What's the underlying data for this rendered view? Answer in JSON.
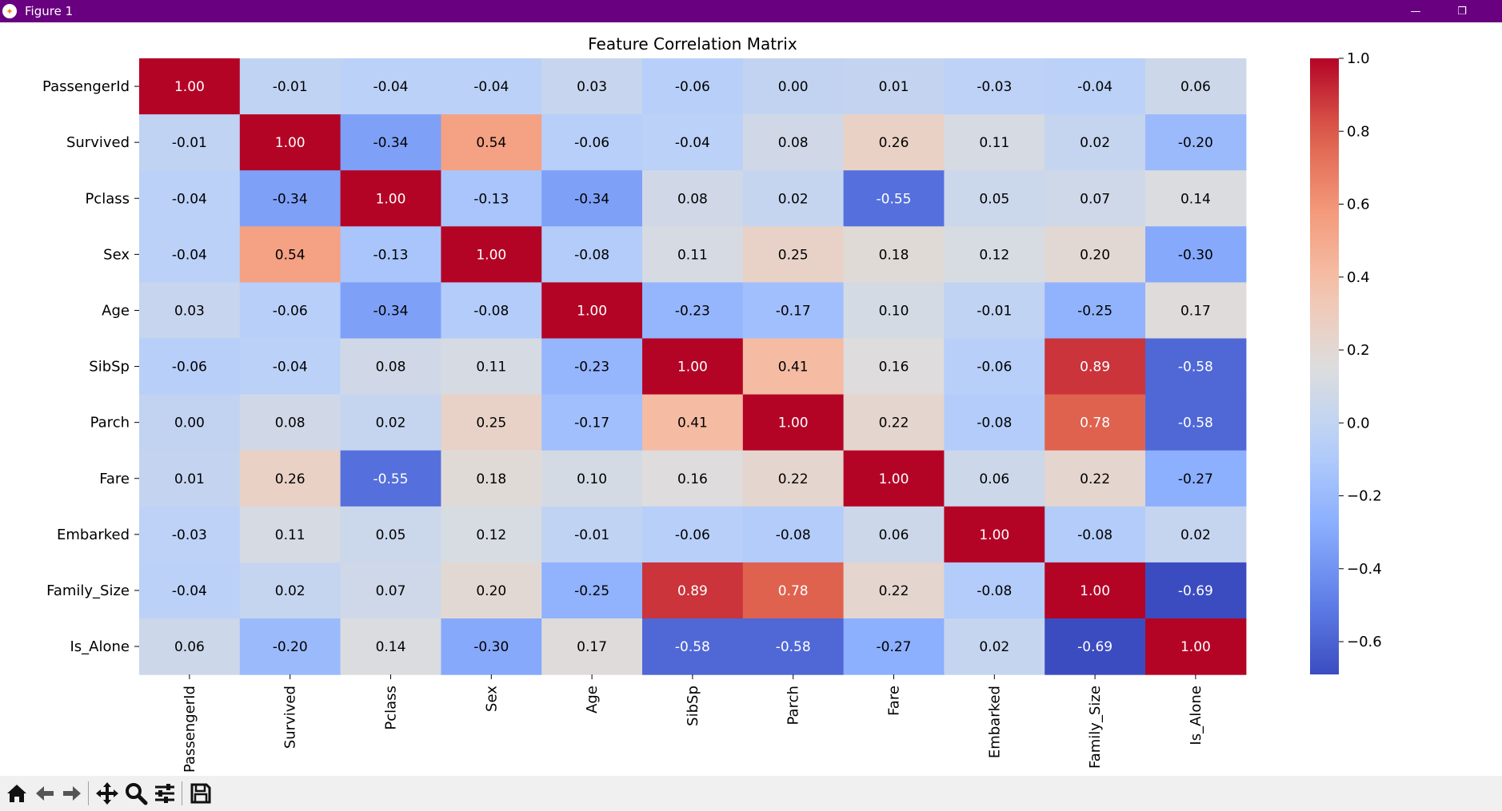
{
  "window": {
    "title": "Figure 1",
    "minimize_glyph": "—",
    "restore_glyph": "❐"
  },
  "toolbar": {
    "tools": [
      {
        "name": "home-icon",
        "glyph": "⌂"
      },
      {
        "name": "back-icon",
        "glyph": "←"
      },
      {
        "name": "forward-icon",
        "glyph": "→"
      },
      {
        "name": "pan-icon",
        "glyph": "✥"
      },
      {
        "name": "zoom-icon",
        "glyph": "🔍"
      },
      {
        "name": "configure-subplots-icon",
        "glyph": "☰"
      },
      {
        "name": "save-icon",
        "glyph": "💾"
      }
    ]
  },
  "chart_data": {
    "type": "heatmap",
    "title": "Feature Correlation Matrix",
    "colormap": "coolwarm",
    "vmin": -0.69,
    "vmax": 1.0,
    "labels": [
      "PassengerId",
      "Survived",
      "Pclass",
      "Sex",
      "Age",
      "SibSp",
      "Parch",
      "Fare",
      "Embarked",
      "Family_Size",
      "Is_Alone"
    ],
    "values": [
      [
        1.0,
        -0.01,
        -0.04,
        -0.04,
        0.03,
        -0.06,
        -0.0,
        0.01,
        -0.03,
        -0.04,
        0.06
      ],
      [
        -0.01,
        1.0,
        -0.34,
        0.54,
        -0.06,
        -0.04,
        0.08,
        0.26,
        0.11,
        0.02,
        -0.2
      ],
      [
        -0.04,
        -0.34,
        1.0,
        -0.13,
        -0.34,
        0.08,
        0.02,
        -0.55,
        0.05,
        0.07,
        0.14
      ],
      [
        -0.04,
        0.54,
        -0.13,
        1.0,
        -0.08,
        0.11,
        0.25,
        0.18,
        0.12,
        0.2,
        -0.3
      ],
      [
        0.03,
        -0.06,
        -0.34,
        -0.08,
        1.0,
        -0.23,
        -0.17,
        0.1,
        -0.01,
        -0.25,
        0.17
      ],
      [
        -0.06,
        -0.04,
        0.08,
        0.11,
        -0.23,
        1.0,
        0.41,
        0.16,
        -0.06,
        0.89,
        -0.58
      ],
      [
        -0.0,
        0.08,
        0.02,
        0.25,
        -0.17,
        0.41,
        1.0,
        0.22,
        -0.08,
        0.78,
        -0.58
      ],
      [
        0.01,
        0.26,
        -0.55,
        0.18,
        0.1,
        0.16,
        0.22,
        1.0,
        0.06,
        0.22,
        -0.27
      ],
      [
        -0.03,
        0.11,
        0.05,
        0.12,
        -0.01,
        -0.06,
        -0.08,
        0.06,
        1.0,
        -0.08,
        0.02
      ],
      [
        -0.04,
        0.02,
        0.07,
        0.2,
        -0.25,
        0.89,
        0.78,
        0.22,
        -0.08,
        1.0,
        -0.69
      ],
      [
        0.06,
        -0.2,
        0.14,
        -0.3,
        0.17,
        -0.58,
        -0.58,
        -0.27,
        0.02,
        -0.69,
        1.0
      ]
    ],
    "colorbar_ticks": [
      1.0,
      0.8,
      0.6,
      0.4,
      0.2,
      0.0,
      -0.2,
      -0.4,
      -0.6
    ],
    "colorbar_tick_labels": [
      "1.0",
      "0.8",
      "0.6",
      "0.4",
      "0.2",
      "0.0",
      "−0.2",
      "−0.4",
      "−0.6"
    ]
  }
}
